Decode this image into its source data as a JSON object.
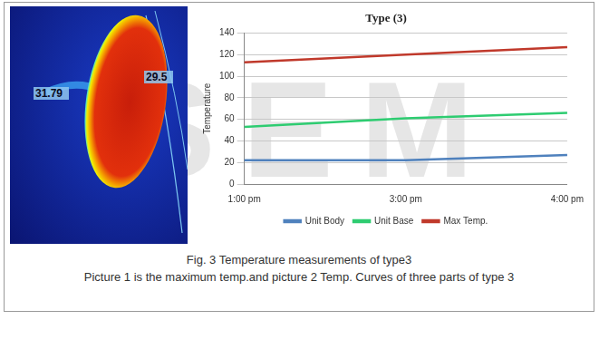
{
  "watermark": "SEM",
  "thermal_image": {
    "labels": [
      "31.79",
      "29.5"
    ]
  },
  "chart_data": {
    "type": "line",
    "title": "Type (3)",
    "y_label": "Temperature",
    "categories": [
      "1:00 pm",
      "3:00 pm",
      "4:00 pm"
    ],
    "series": [
      {
        "name": "Unit Body",
        "color": "#4f81bd",
        "values": [
          22,
          22,
          27
        ]
      },
      {
        "name": "Unit Base",
        "color": "#2ecc71",
        "values": [
          53,
          61,
          66
        ]
      },
      {
        "name": "Max Temp.",
        "color": "#c0392b",
        "values": [
          113,
          120,
          127
        ]
      }
    ],
    "ylim": [
      0,
      140
    ],
    "yticks": [
      0,
      20,
      40,
      60,
      80,
      100,
      120,
      140
    ],
    "grid": true,
    "legend": "bottom"
  },
  "caption": [
    "Fig. 3 Temperature measurements of type3",
    "Picture 1 is the maximum temp.and picture 2 Temp. Curves of three parts of type 3"
  ]
}
